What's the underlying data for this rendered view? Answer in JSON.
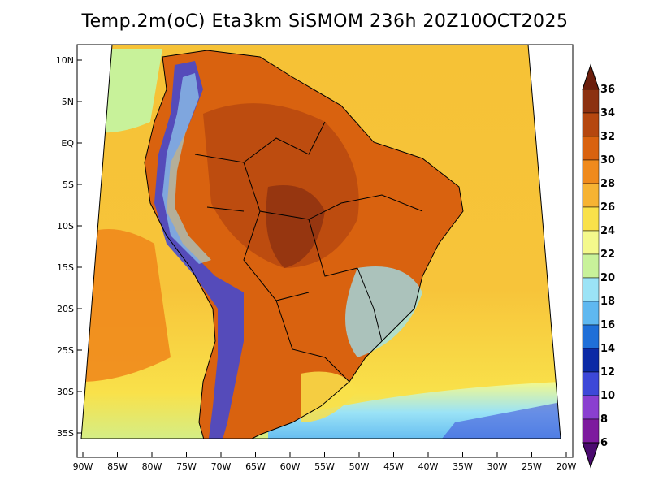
{
  "title": "Temp.2m(oC) Eta3km SiSMOM 236h 20Z10OCT2025",
  "lat_labels": [
    "10N",
    "5N",
    "EQ",
    "5S",
    "10S",
    "15S",
    "20S",
    "25S",
    "30S",
    "35S"
  ],
  "lon_labels": [
    "90W",
    "85W",
    "80W",
    "75W",
    "70W",
    "65W",
    "60W",
    "55W",
    "50W",
    "45W",
    "40W",
    "35W",
    "30W",
    "25W",
    "20W"
  ],
  "colorbar": {
    "labels": [
      "36",
      "34",
      "32",
      "30",
      "28",
      "26",
      "24",
      "22",
      "20",
      "18",
      "16",
      "14",
      "12",
      "10",
      "8",
      "6"
    ],
    "colors": [
      "#6b1e0c",
      "#8c3110",
      "#b5470f",
      "#d9620f",
      "#ef8a1c",
      "#f6b333",
      "#f9e14a",
      "#f4f98c",
      "#c8f29a",
      "#9be3f6",
      "#5fb8f0",
      "#1f6fd8",
      "#0c2aa5",
      "#3d48d8",
      "#8a3fd0",
      "#7d1a9e",
      "#4b0a6f"
    ]
  },
  "colors": {
    "ocean_warm": "#f6b333",
    "ocean_cool": "#f9e14a",
    "land_hot": "#d9620f",
    "andes": "#3d48d8"
  }
}
